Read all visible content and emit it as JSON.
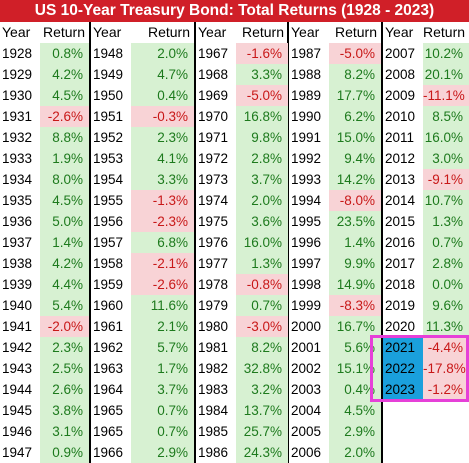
{
  "title": "US 10-Year Treasury Bond: Total Returns (1928 - 2023)",
  "header": {
    "year": "Year",
    "return": "Return"
  },
  "colors": {
    "title_bg": "#d01f28",
    "positive_bg": "#d7f1d2",
    "positive_text": "#1d7a1d",
    "negative_bg": "#f8d3d6",
    "negative_text": "#c81818",
    "highlight_year_bg": "#1aa0dc",
    "highlight_border": "#e640d8"
  },
  "highlighted_years": [
    "2021",
    "2022",
    "2023"
  ],
  "chart_data": {
    "type": "table",
    "title": "US 10-Year Treasury Bond: Total Returns (1928 - 2023)",
    "columns": [
      "Year",
      "Return"
    ],
    "groups": [
      [
        [
          "1928",
          "0.8%"
        ],
        [
          "1929",
          "4.2%"
        ],
        [
          "1930",
          "4.5%"
        ],
        [
          "1931",
          "-2.6%"
        ],
        [
          "1932",
          "8.8%"
        ],
        [
          "1933",
          "1.9%"
        ],
        [
          "1934",
          "8.0%"
        ],
        [
          "1935",
          "4.5%"
        ],
        [
          "1936",
          "5.0%"
        ],
        [
          "1937",
          "1.4%"
        ],
        [
          "1938",
          "4.2%"
        ],
        [
          "1939",
          "4.4%"
        ],
        [
          "1940",
          "5.4%"
        ],
        [
          "1941",
          "-2.0%"
        ],
        [
          "1942",
          "2.3%"
        ],
        [
          "1943",
          "2.5%"
        ],
        [
          "1944",
          "2.6%"
        ],
        [
          "1945",
          "3.8%"
        ],
        [
          "1946",
          "3.1%"
        ],
        [
          "1947",
          "0.9%"
        ]
      ],
      [
        [
          "1948",
          "2.0%"
        ],
        [
          "1949",
          "4.7%"
        ],
        [
          "1950",
          "0.4%"
        ],
        [
          "1951",
          "-0.3%"
        ],
        [
          "1952",
          "2.3%"
        ],
        [
          "1953",
          "4.1%"
        ],
        [
          "1954",
          "3.3%"
        ],
        [
          "1955",
          "-1.3%"
        ],
        [
          "1956",
          "-2.3%"
        ],
        [
          "1957",
          "6.8%"
        ],
        [
          "1958",
          "-2.1%"
        ],
        [
          "1959",
          "-2.6%"
        ],
        [
          "1960",
          "11.6%"
        ],
        [
          "1961",
          "2.1%"
        ],
        [
          "1962",
          "5.7%"
        ],
        [
          "1963",
          "1.7%"
        ],
        [
          "1964",
          "3.7%"
        ],
        [
          "1965",
          "0.7%"
        ],
        [
          "1965",
          "0.7%"
        ],
        [
          "1966",
          "2.9%"
        ]
      ],
      [
        [
          "1967",
          "-1.6%"
        ],
        [
          "1968",
          "3.3%"
        ],
        [
          "1969",
          "-5.0%"
        ],
        [
          "1970",
          "16.8%"
        ],
        [
          "1971",
          "9.8%"
        ],
        [
          "1972",
          "2.8%"
        ],
        [
          "1973",
          "3.7%"
        ],
        [
          "1974",
          "2.0%"
        ],
        [
          "1975",
          "3.6%"
        ],
        [
          "1976",
          "16.0%"
        ],
        [
          "1977",
          "1.3%"
        ],
        [
          "1978",
          "-0.8%"
        ],
        [
          "1979",
          "0.7%"
        ],
        [
          "1980",
          "-3.0%"
        ],
        [
          "1981",
          "8.2%"
        ],
        [
          "1982",
          "32.8%"
        ],
        [
          "1983",
          "3.2%"
        ],
        [
          "1984",
          "13.7%"
        ],
        [
          "1985",
          "25.7%"
        ],
        [
          "1986",
          "24.3%"
        ]
      ],
      [
        [
          "1987",
          "-5.0%"
        ],
        [
          "1988",
          "8.2%"
        ],
        [
          "1989",
          "17.7%"
        ],
        [
          "1990",
          "6.2%"
        ],
        [
          "1991",
          "15.0%"
        ],
        [
          "1992",
          "9.4%"
        ],
        [
          "1993",
          "14.2%"
        ],
        [
          "1994",
          "-8.0%"
        ],
        [
          "1995",
          "23.5%"
        ],
        [
          "1996",
          "1.4%"
        ],
        [
          "1997",
          "9.9%"
        ],
        [
          "1998",
          "14.9%"
        ],
        [
          "1999",
          "-8.3%"
        ],
        [
          "2000",
          "16.7%"
        ],
        [
          "2001",
          "5.6%"
        ],
        [
          "2002",
          "15.1%"
        ],
        [
          "2003",
          "0.4%"
        ],
        [
          "2004",
          "4.5%"
        ],
        [
          "2005",
          "2.9%"
        ],
        [
          "2006",
          "2.0%"
        ]
      ],
      [
        [
          "2007",
          "10.2%"
        ],
        [
          "2008",
          "20.1%"
        ],
        [
          "2009",
          "-11.1%"
        ],
        [
          "2010",
          "8.5%"
        ],
        [
          "2011",
          "16.0%"
        ],
        [
          "2012",
          "3.0%"
        ],
        [
          "2013",
          "-9.1%"
        ],
        [
          "2014",
          "10.7%"
        ],
        [
          "2015",
          "1.3%"
        ],
        [
          "2016",
          "0.7%"
        ],
        [
          "2017",
          "2.8%"
        ],
        [
          "2018",
          "0.0%"
        ],
        [
          "2019",
          "9.6%"
        ],
        [
          "2020",
          "11.3%"
        ],
        [
          "2021",
          "-4.4%"
        ],
        [
          "2022",
          "-17.8%"
        ],
        [
          "2023",
          "-1.2%"
        ]
      ]
    ]
  }
}
